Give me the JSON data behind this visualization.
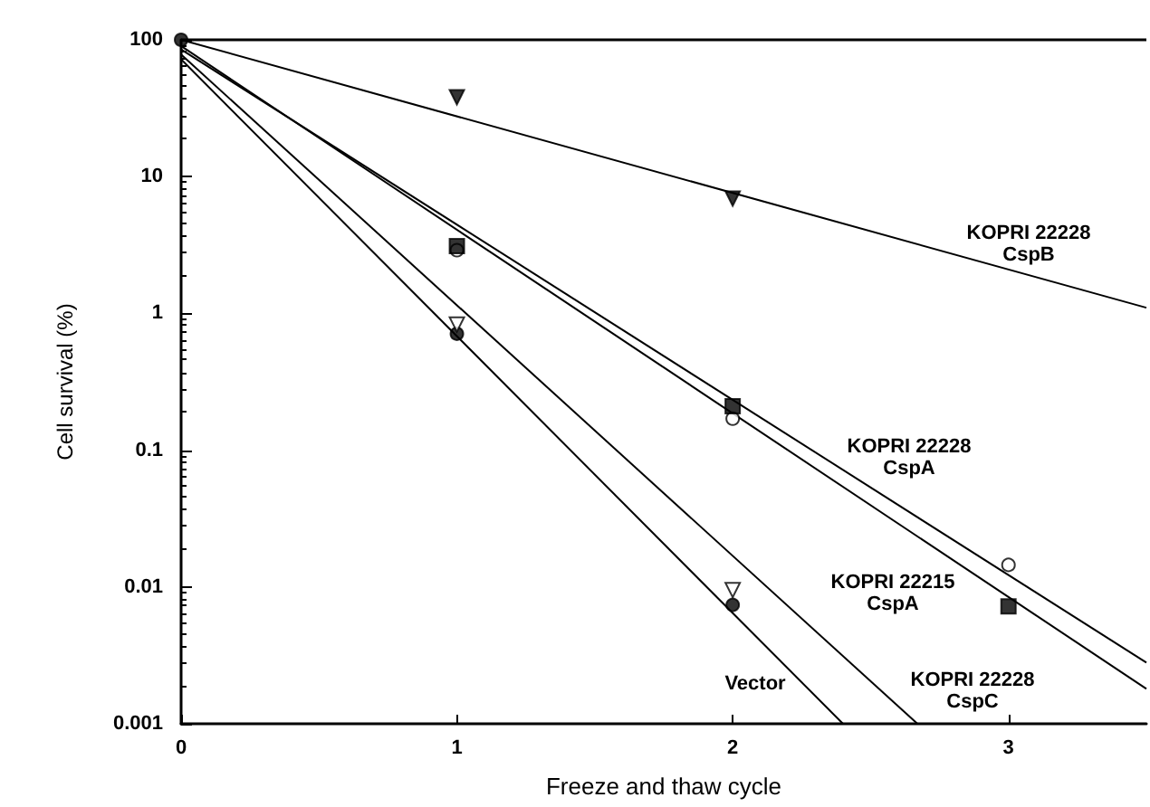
{
  "chart_data": {
    "type": "scatter",
    "xlabel": "Freeze and thaw cycle",
    "ylabel": "Cell survival (%)",
    "xlim": [
      0,
      3.5
    ],
    "xticks": [
      0,
      1,
      2,
      3
    ],
    "ylim": [
      0.001,
      100
    ],
    "yticks": [
      0.001,
      0.01,
      0.1,
      1,
      10,
      100
    ],
    "log": true,
    "grid": false,
    "series": [
      {
        "marker": "triangle",
        "color": "#000000",
        "x": [
          1,
          2
        ],
        "values": [
          38,
          6.9
        ]
      },
      {
        "marker": "square",
        "color": "#000000",
        "x": [
          1,
          2,
          3
        ],
        "values": [
          3.1,
          0.21,
          0.0072
        ]
      },
      {
        "marker": "circle",
        "color": "#ffffff",
        "x": [
          1,
          2,
          3
        ],
        "values": [
          2.9,
          0.17,
          0.0145
        ]
      },
      {
        "marker": "triangle",
        "color": "#ffffff",
        "x": [
          1,
          2
        ],
        "values": [
          0.83,
          0.0095
        ]
      },
      {
        "marker": "circle",
        "color": "#000000",
        "x": [
          0,
          1,
          2
        ],
        "values": [
          100,
          0.71,
          0.0074
        ]
      },
      {
        "type": "line",
        "color": "#000000",
        "x": [
          0,
          3.5
        ],
        "values": [
          100,
          1.1
        ]
      },
      {
        "type": "line",
        "color": "#000000",
        "x": [
          0,
          3.5
        ],
        "values": [
          90,
          0.0018
        ]
      },
      {
        "type": "line",
        "color": "#000000",
        "x": [
          0,
          3.5
        ],
        "values": [
          85,
          0.0028
        ]
      },
      {
        "type": "line",
        "color": "#000000",
        "x": [
          0,
          2.67
        ],
        "values": [
          78,
          0.001
        ]
      },
      {
        "type": "line",
        "color": "#000000",
        "x": [
          0,
          2.4
        ],
        "values": [
          72,
          0.001
        ]
      }
    ],
    "ref_lines": [
      {
        "axis": "y",
        "value": 100,
        "color": "#000000"
      }
    ],
    "annotations": [
      "KOPRI 22228\nCspB",
      "KOPRI 22228\nCspA",
      "KOPRI 22215\nCspA",
      "Vector",
      "KOPRI 22228\nCspC"
    ]
  }
}
